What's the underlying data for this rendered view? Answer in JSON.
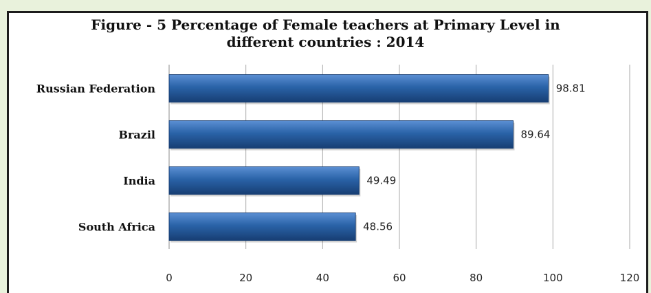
{
  "chart_data": {
    "type": "bar",
    "orientation": "horizontal",
    "title_lines": [
      "Figure - 5  Percentage of Female teachers at Primary Level in",
      "different countries  : 2014"
    ],
    "categories": [
      "Russian Federation",
      "Brazil",
      "India",
      "South Africa"
    ],
    "values": [
      98.81,
      89.64,
      49.49,
      48.56
    ],
    "value_labels": [
      "98.81",
      "89.64",
      "49.49",
      "48.56"
    ],
    "xlim": [
      0,
      120
    ],
    "xticks": [
      0,
      20,
      40,
      60,
      80,
      100,
      120
    ],
    "grid": true,
    "legend": "none",
    "colors": {
      "bar": "#2a63a8",
      "bar_light": "#5b8fd3",
      "bar_dark": "#173e73",
      "grid": "#a9a9a9"
    }
  }
}
